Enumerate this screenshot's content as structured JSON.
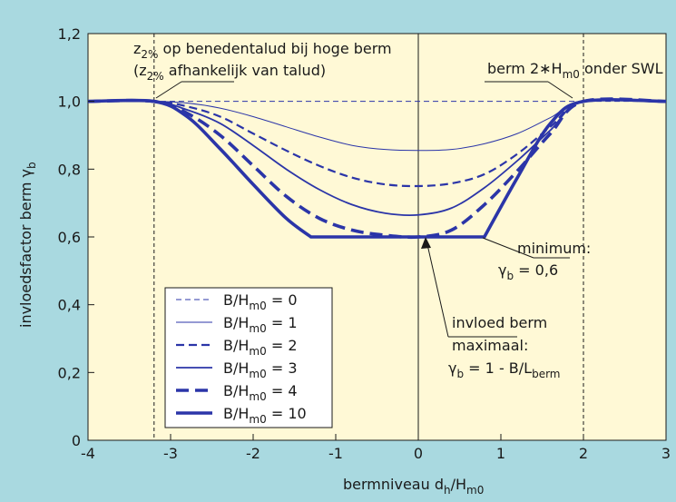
{
  "colors": {
    "background": "#a9d9e0",
    "plot_bg": "#fff9d6",
    "line": "#2b35a8",
    "axis": "#1a1a1a",
    "legend_bg": "#ffffff"
  },
  "chart_data": {
    "type": "line",
    "xlabel": "bermniveau d_h/H_m0",
    "ylabel": "invloedsfactor berm γ_b",
    "xlim": [
      -4,
      3
    ],
    "ylim": [
      0,
      1.2
    ],
    "xticks": [
      "-4",
      "-3",
      "-2",
      "-1",
      "0",
      "1",
      "2",
      "3"
    ],
    "yticks": [
      "0",
      "0,2",
      "0,4",
      "0,6",
      "0,8",
      "1,0",
      "1,2"
    ],
    "grid": false,
    "legend_position": "bottom-left",
    "reference_lines": [
      {
        "x": -3.2,
        "style": "dashed"
      },
      {
        "x": 0,
        "style": "solid"
      },
      {
        "x": 2,
        "style": "dashed"
      }
    ],
    "series": [
      {
        "name": "B/H_m0 = 0",
        "style": "thin-dashed",
        "x": [
          -4,
          3
        ],
        "y": [
          1.0,
          1.0
        ]
      },
      {
        "name": "B/H_m0 = 1",
        "style": "thin-solid",
        "x": [
          -4,
          -3.2,
          -2.8,
          -2.4,
          -2.0,
          -1.6,
          -1.2,
          -0.8,
          -0.4,
          0,
          0.4,
          0.8,
          1.2,
          1.6,
          2.0,
          3
        ],
        "y": [
          1.0,
          1.0,
          0.995,
          0.98,
          0.955,
          0.925,
          0.895,
          0.87,
          0.858,
          0.855,
          0.858,
          0.875,
          0.905,
          0.952,
          1.0,
          1.0
        ]
      },
      {
        "name": "B/H_m0 = 2",
        "style": "medium-dashed",
        "x": [
          -4,
          -3.2,
          -2.8,
          -2.4,
          -2.0,
          -1.6,
          -1.2,
          -0.8,
          -0.4,
          0,
          0.4,
          0.8,
          1.2,
          1.6,
          2.0,
          3
        ],
        "y": [
          1.0,
          1.0,
          0.985,
          0.955,
          0.905,
          0.855,
          0.81,
          0.775,
          0.755,
          0.75,
          0.758,
          0.785,
          0.845,
          0.925,
          1.0,
          1.0
        ]
      },
      {
        "name": "B/H_m0 = 3",
        "style": "medium-solid",
        "x": [
          -4,
          -3.2,
          -2.8,
          -2.4,
          -2.0,
          -1.6,
          -1.2,
          -0.8,
          -0.4,
          0,
          0.4,
          0.8,
          1.2,
          1.6,
          2.0,
          3
        ],
        "y": [
          1.0,
          1.0,
          0.975,
          0.935,
          0.87,
          0.8,
          0.74,
          0.695,
          0.67,
          0.665,
          0.685,
          0.745,
          0.825,
          0.915,
          1.0,
          1.0
        ]
      },
      {
        "name": "B/H_m0 = 4",
        "style": "thick-dashed",
        "x": [
          -4,
          -3.2,
          -2.8,
          -2.4,
          -2.0,
          -1.6,
          -1.2,
          -0.8,
          -0.4,
          0,
          0.4,
          0.8,
          1.2,
          1.6,
          2.0,
          3
        ],
        "y": [
          1.0,
          1.0,
          0.965,
          0.9,
          0.81,
          0.72,
          0.655,
          0.62,
          0.605,
          0.6,
          0.62,
          0.695,
          0.795,
          0.905,
          1.0,
          1.0
        ]
      },
      {
        "name": "B/H_m0 = 10",
        "style": "thick-solid",
        "x": [
          -4,
          -3.2,
          -2.8,
          -2.4,
          -2.0,
          -1.6,
          -1.3,
          0.8,
          1.2,
          1.6,
          2.0,
          3
        ],
        "y": [
          1.0,
          1.0,
          0.955,
          0.86,
          0.755,
          0.655,
          0.6,
          0.6,
          0.775,
          0.935,
          1.0,
          1.0
        ]
      }
    ],
    "annotations": [
      {
        "text": "z2% op benedentalud bij hoge berm",
        "target_x": -3.2,
        "target_y": 1.0
      },
      {
        "text": "(z2% afhankelijk van talud)"
      },
      {
        "text": "berm 2∗Hm0 onder SWL",
        "target_x": 2.0,
        "target_y": 1.0
      },
      {
        "text": "minimum: γb = 0,6",
        "target_x": 0.7,
        "target_y": 0.6
      },
      {
        "text": "invloed berm maximaal: γb = 1 - B/Lberm",
        "target_x": 0,
        "target_y": 0.6
      }
    ]
  },
  "labels": {
    "ann1_line1_z": "z",
    "ann1_line1_sub": "2%",
    "ann1_line1_rest": " op benedentalud bij hoge berm",
    "ann1_line2_open": "(z",
    "ann1_line2_sub": "2%",
    "ann1_line2_rest": " afhankelijk van talud)",
    "ann2_a": "berm 2∗H",
    "ann2_sub": "m0",
    "ann2_b": " onder SWL",
    "ann3_line1": "minimum:",
    "ann3_line2_g": "γ",
    "ann3_line2_sub": "b",
    "ann3_line2_rest": " = 0,6",
    "ann4_line1": "invloed berm",
    "ann4_line2": "maximaal:",
    "ann4_line3_g": "γ",
    "ann4_line3_sub": "b",
    "ann4_line3_mid": " = 1 - B/L",
    "ann4_line3_sub2": "berm",
    "xlabel_main": "bermniveau d",
    "xlabel_sub1": "h",
    "xlabel_mid": "/H",
    "xlabel_sub2": "m0",
    "ylabel_main": "invloedsfactor berm γ",
    "ylabel_sub": "b",
    "legend_prefix": "B/H",
    "legend_sub": "m0",
    "legend_values": [
      "=  0",
      "=  1",
      "=  2",
      "=  3",
      "=  4",
      "= 10"
    ]
  }
}
